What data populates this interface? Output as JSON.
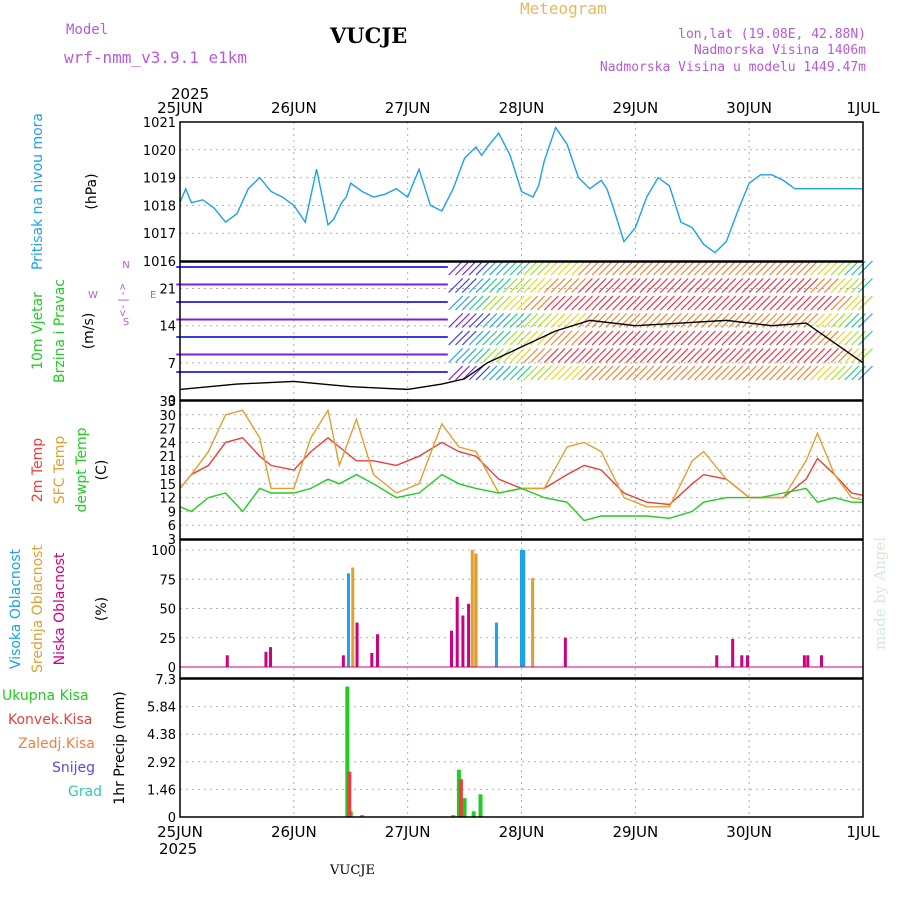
{
  "header": {
    "model_label": "Model",
    "model_name": "wrf-nmm_v3.9.1 e1km",
    "station": "VUCJE",
    "meteogram": "Meteogram",
    "lonlat": "lon,lat (19.08E, 42.88N)",
    "elevation": "Nadmorska Visina 1406m",
    "model_elevation": "Nadmorska Visina u modelu 1449.47m",
    "year_top": "2025",
    "year_bottom": "2025",
    "footer": "VUCJE",
    "credit": "made by Angel"
  },
  "colors": {
    "pressure": "#1aa3e8",
    "temp2m": "#e8403a",
    "sfc": "#e0a030",
    "dewpoint": "#22cc22",
    "high_cloud": "#1aa3e8",
    "mid_cloud": "#e0a030",
    "low_cloud": "#cc0080",
    "total_precip": "#22cc22",
    "conv_precip": "#e84040",
    "header": "#b75ad8"
  },
  "dates": [
    "25JUN",
    "26JUN",
    "27JUN",
    "28JUN",
    "29JUN",
    "30JUN",
    "1JUL"
  ],
  "panels": {
    "pressure": {
      "ylabel": [
        "Pritisak na nivou mora"
      ],
      "unit": "(hPa)",
      "ticks": [
        "1016",
        "1017",
        "1018",
        "1019",
        "1020",
        "1021"
      ]
    },
    "wind": {
      "ylabel": [
        "10m Vjetar",
        "Brzina i Pravac"
      ],
      "unit": "(m/s)",
      "ticks": [
        "0",
        "7",
        "14",
        "21"
      ],
      "compass": [
        "N",
        "<-|->",
        "S",
        "W",
        "E"
      ]
    },
    "temp": {
      "ylabel": [
        "2m Temp",
        "SFC Temp",
        "dewpt Temp"
      ],
      "unit": "(C)",
      "ticks": [
        "3",
        "6",
        "9",
        "12",
        "15",
        "18",
        "21",
        "24",
        "27",
        "30",
        "33"
      ]
    },
    "cloud": {
      "ylabel": [
        "Visoka Oblacnost",
        "Srednja Oblacnost",
        "Niska Oblacnost"
      ],
      "unit": "(%)",
      "ticks": [
        "0",
        "25",
        "50",
        "75",
        "100"
      ]
    },
    "precip": {
      "ylabel": [
        "Ukupna Kisa",
        "Konvek.Kisa",
        "Zaledj.Kisa",
        "Snijeg",
        "Grad"
      ],
      "unit": "1hr Precip (mm)",
      "ticks": [
        "0",
        "1.46",
        "2.92",
        "4.38",
        "5.84",
        "7.3"
      ]
    }
  },
  "chart_data": [
    {
      "type": "line",
      "name": "pressure",
      "ylim": [
        1016,
        1021
      ],
      "x_days": [
        0,
        0.05,
        0.1,
        0.2,
        0.3,
        0.4,
        0.5,
        0.6,
        0.7,
        0.8,
        0.9,
        1.0,
        1.1,
        1.2,
        1.3,
        1.35,
        1.42,
        1.46,
        1.5,
        1.6,
        1.7,
        1.8,
        1.9,
        2.0,
        2.1,
        2.2,
        2.3,
        2.4,
        2.5,
        2.6,
        2.65,
        2.7,
        2.8,
        2.9,
        3.0,
        3.1,
        3.15,
        3.2,
        3.3,
        3.4,
        3.5,
        3.6,
        3.7,
        3.75,
        3.8,
        3.9,
        4.0,
        4.1,
        4.2,
        4.3,
        4.4,
        4.5,
        4.6,
        4.7,
        4.8,
        4.9,
        5.0,
        5.1,
        5.2,
        5.3,
        5.4,
        5.5,
        5.6,
        5.7,
        5.8,
        5.9,
        6.0
      ],
      "series": [
        {
          "name": "Pritisak na nivou mora",
          "values": [
            1018.1,
            1018.6,
            1018.1,
            1018.2,
            1017.9,
            1017.4,
            1017.7,
            1018.6,
            1019.0,
            1018.5,
            1018.3,
            1018.0,
            1017.4,
            1019.3,
            1017.3,
            1017.5,
            1018.1,
            1018.3,
            1018.8,
            1018.5,
            1018.3,
            1018.4,
            1018.6,
            1018.3,
            1019.3,
            1018.0,
            1017.8,
            1018.6,
            1019.7,
            1020.1,
            1019.8,
            1020.1,
            1020.6,
            1019.8,
            1018.5,
            1018.3,
            1018.7,
            1019.6,
            1020.8,
            1020.2,
            1019.0,
            1018.6,
            1018.9,
            1018.6,
            1018.0,
            1016.7,
            1017.2,
            1018.3,
            1019.0,
            1018.7,
            1017.4,
            1017.2,
            1016.6,
            1016.3,
            1016.7,
            1017.8,
            1018.8,
            1019.1,
            1019.1,
            1018.9,
            1018.6,
            1018.6,
            1018.6,
            1018.6,
            1018.6,
            1018.6,
            1018.6
          ]
        }
      ]
    },
    {
      "type": "line",
      "name": "wind_speed",
      "ylim": [
        0,
        26
      ],
      "x_days": [
        0,
        0.5,
        1.0,
        1.5,
        2.0,
        2.3,
        2.5,
        2.7,
        3.0,
        3.3,
        3.6,
        4.0,
        4.4,
        4.8,
        5.2,
        5.5,
        5.8,
        6.0
      ],
      "series": [
        {
          "name": "10m Vjetar",
          "values": [
            2,
            3,
            3.5,
            2.5,
            2,
            3,
            4,
            7,
            10,
            13,
            15,
            14,
            14.5,
            15,
            14,
            14.5,
            10,
            7
          ]
        }
      ]
    },
    {
      "type": "line",
      "name": "temperature",
      "ylim": [
        3,
        33
      ],
      "x_days": [
        0,
        0.1,
        0.25,
        0.4,
        0.55,
        0.7,
        0.8,
        1.0,
        1.15,
        1.3,
        1.4,
        1.55,
        1.7,
        1.9,
        2.1,
        2.3,
        2.45,
        2.6,
        2.8,
        3.0,
        3.2,
        3.4,
        3.55,
        3.7,
        3.9,
        4.1,
        4.3,
        4.5,
        4.6,
        4.8,
        5.0,
        5.1,
        5.3,
        5.5,
        5.6,
        5.75,
        5.9,
        6.0
      ],
      "series": [
        {
          "name": "2m Temp",
          "values": [
            14,
            17,
            19,
            24,
            25,
            21,
            19,
            18,
            22,
            25,
            23,
            20,
            20,
            19,
            21,
            24,
            22,
            21,
            16,
            14,
            14,
            17,
            19,
            18,
            13,
            11,
            10.5,
            15,
            17,
            16,
            12,
            12,
            12,
            16,
            20.5,
            17,
            13,
            12.5
          ]
        },
        {
          "name": "SFC Temp",
          "values": [
            14,
            17,
            22,
            30,
            31,
            25,
            14,
            14,
            25,
            31,
            19,
            29,
            17,
            13,
            15,
            28,
            23,
            22,
            13,
            14,
            14,
            23,
            24,
            22,
            12,
            10,
            10,
            20,
            22,
            16,
            12,
            12,
            12,
            20,
            26,
            17,
            12,
            11.5
          ]
        },
        {
          "name": "dewpt Temp",
          "values": [
            10,
            9,
            12,
            13,
            9,
            14,
            13,
            13,
            14,
            16,
            15,
            17,
            15,
            12,
            13,
            17,
            15,
            14,
            13,
            14,
            12,
            11,
            7,
            8,
            8,
            8,
            7.5,
            9,
            11,
            12,
            12,
            12,
            13,
            14,
            11,
            12,
            11,
            11
          ]
        }
      ]
    },
    {
      "type": "bar",
      "name": "cloud_cover",
      "ylim": [
        0,
        100
      ],
      "series": [
        {
          "name": "Visoka Oblacnost",
          "x_days": [
            1.48,
            2.6,
            2.78,
            3.0,
            3.02
          ],
          "values": [
            80,
            97,
            38,
            100,
            100
          ]
        },
        {
          "name": "Srednja Oblacnost",
          "x_days": [
            1.5,
            2.55,
            2.58,
            3.08
          ],
          "values": [
            85,
            100,
            97,
            76
          ]
        },
        {
          "name": "Niska Oblacnost",
          "x_days": [
            0.38,
            0.72,
            0.76,
            1.4,
            1.52,
            1.65,
            1.7,
            2.35,
            2.4,
            2.45,
            2.5,
            3.35,
            4.68,
            4.82,
            4.9,
            4.95,
            5.45,
            5.48,
            5.6
          ],
          "values": [
            10,
            13,
            17,
            10,
            38,
            12,
            28,
            31,
            60,
            44,
            54,
            25,
            10,
            24,
            10,
            10,
            10,
            10,
            10
          ]
        }
      ]
    },
    {
      "type": "bar",
      "name": "precipitation",
      "ylim": [
        0,
        7.3
      ],
      "series": [
        {
          "name": "Ukupna Kisa",
          "x_days": [
            1.47,
            1.5,
            1.6,
            2.4,
            2.45,
            2.5,
            2.58,
            2.64
          ],
          "values": [
            6.9,
            0.3,
            0.1,
            0.1,
            2.5,
            1.0,
            0.3,
            1.2
          ]
        },
        {
          "name": "Konvek.Kisa",
          "x_days": [
            1.47,
            2.45
          ],
          "values": [
            2.4,
            2.0
          ]
        }
      ]
    }
  ]
}
